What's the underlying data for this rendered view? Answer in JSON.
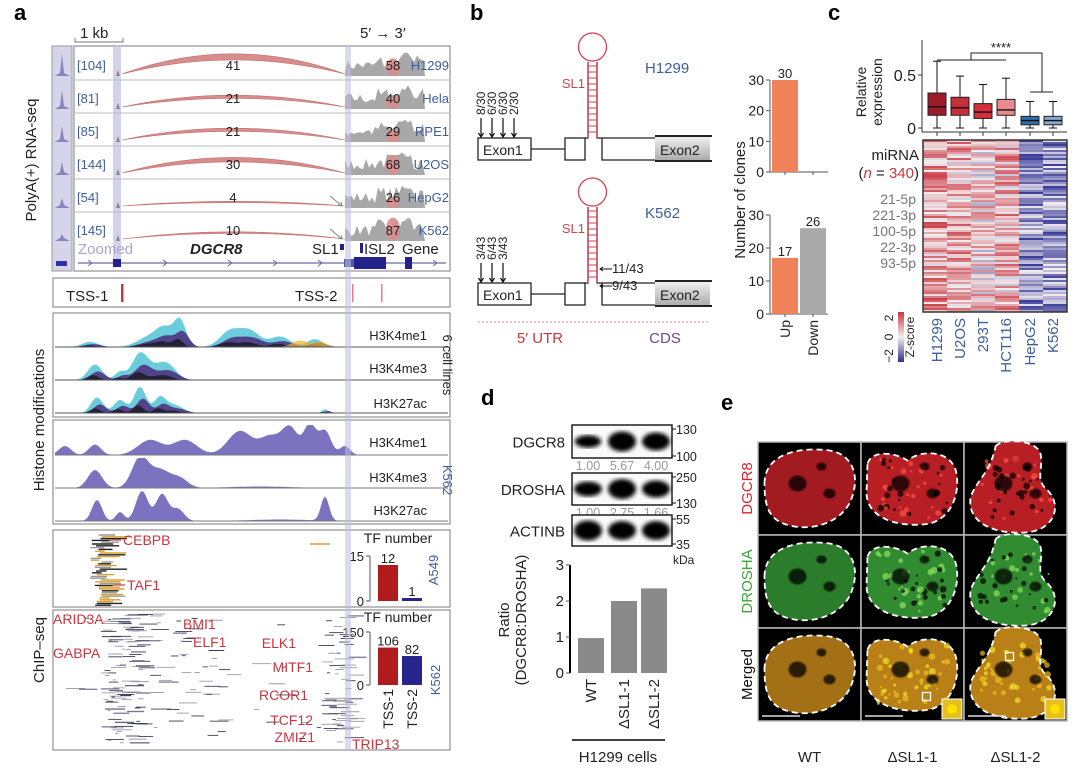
{
  "figure": {
    "panel_a": {
      "label": "a",
      "scale_label": "1 kb",
      "direction_label": "5′ → 3′",
      "rnaseq_ylabel": "PolyA(+) RNA-seq",
      "tracks": [
        {
          "range": "[104]",
          "junction_left": "41",
          "junction_right": "58",
          "cell_line": "H1299"
        },
        {
          "range": "[81]",
          "junction_left": "21",
          "junction_right": "40",
          "cell_line": "Hela"
        },
        {
          "range": "[85]",
          "junction_left": "21",
          "junction_right": "29",
          "cell_line": "RPE1"
        },
        {
          "range": "[144]",
          "junction_left": "30",
          "junction_right": "68",
          "cell_line": "U2OS"
        },
        {
          "range": "[54]",
          "junction_left": "4",
          "junction_right": "26",
          "cell_line": "HepG2"
        },
        {
          "range": "[145]",
          "junction_left": "10",
          "junction_right": "87",
          "cell_line": "K562"
        }
      ],
      "gene_track": {
        "zoomed": "Zoomed",
        "gene": "DGCR8",
        "sl1": "SL1",
        "isl2": "ISL2",
        "gene_label": "Gene"
      },
      "tss": {
        "tss1": "TSS-1",
        "tss2": "TSS-2"
      },
      "histone_ylabel": "Histone modifications",
      "histone_group1": {
        "label": "6 cell lines",
        "marks": [
          "H3K4me1",
          "H3K4me3",
          "H3K27ac"
        ]
      },
      "histone_group2": {
        "label": "K562",
        "marks": [
          "H3K4me1",
          "H3K4me3",
          "H3K27ac"
        ]
      },
      "chip_ylabel": "ChIP–seq",
      "chip_a549": {
        "cell_line": "A549",
        "tf_labels": [
          "CEBPB",
          "TAF1"
        ]
      },
      "chip_k562": {
        "cell_line": "K562",
        "tf_labels": [
          "ARID3A",
          "GABPA",
          "BMI1",
          "ELF1",
          "ELK1",
          "MITF1",
          "RCOR1",
          "TCF12",
          "ZMIZ1",
          "TRIP13"
        ]
      },
      "colors": {
        "junction_arc": "#d88c8c",
        "coverage": "#a8a8a8",
        "tf_label": "#c8363f",
        "k562_histone": "#7b72c0"
      }
    },
    "panel_b": {
      "label": "b",
      "constructs": [
        {
          "cell_line": "H1299",
          "start_fractions": [
            "8/30",
            "6/30",
            "6/30",
            "2/30"
          ],
          "stem_fractions": []
        },
        {
          "cell_line": "K562",
          "start_fractions": [
            "3/43",
            "6/43",
            "3/43"
          ],
          "stem_fractions": [
            "11/43",
            "9/43"
          ]
        }
      ],
      "stem_loop": "SL1",
      "exon1": "Exon1",
      "exon2": "Exon2",
      "utr_label": "5′ UTR",
      "cds_label": "CDS"
    },
    "panel_c": {
      "label": "c",
      "mirna_label": "miRNA",
      "n_open": "(",
      "n_symbol": "n",
      "n_eq": " = ",
      "n_value": "340",
      "n_close": ")",
      "mirna_names": [
        "21-5p",
        "221-3p",
        "100-5p",
        "22-3p",
        "93-5p"
      ],
      "zscore_label": "Z-score",
      "zscore_ticks": [
        "2",
        "0",
        "−2"
      ],
      "colors": {
        "high": "#c8363f",
        "mid": "#f4eef0",
        "low": "#3b3f9a"
      }
    },
    "panel_d": {
      "label": "d",
      "blots": [
        {
          "protein": "DGCR8",
          "quant": [
            "1.00",
            "5.67",
            "4.00"
          ],
          "mw": [
            "130",
            "100"
          ]
        },
        {
          "protein": "DROSHA",
          "quant": [
            "1.00",
            "2.75",
            "1.66"
          ],
          "mw": [
            "250",
            "130"
          ]
        },
        {
          "protein": "ACTINB",
          "quant": [],
          "mw": [
            "55",
            "35"
          ]
        }
      ],
      "mw_unit": "kDa",
      "group_label": "H1299 cells"
    },
    "panel_e": {
      "label": "e",
      "rows": [
        {
          "label": "DGCR8",
          "color": "#d8242c"
        },
        {
          "label": "DROSHA",
          "color": "#3aa53a"
        },
        {
          "label": "Merged",
          "color": "#d9961c"
        }
      ],
      "columns": [
        "WT",
        "ΔSL1-1",
        "ΔSL1-2"
      ]
    }
  },
  "chart_data": [
    {
      "type": "bar",
      "title": "TF number",
      "cell_line": "A549",
      "values": [
        12,
        1
      ],
      "yticks": [
        0,
        15
      ],
      "ylim": [
        0,
        15
      ],
      "colors": [
        "#b01c1c",
        "#25258c"
      ]
    },
    {
      "type": "bar",
      "title": "TF number",
      "cell_line": "K562",
      "categories": [
        "TSS-1",
        "TSS-2"
      ],
      "values": [
        106,
        82
      ],
      "yticks": [
        0,
        150
      ],
      "ylim": [
        0,
        150
      ],
      "colors": [
        "#b01c1c",
        "#25258c"
      ]
    },
    {
      "type": "bar",
      "cell_line": "H1299",
      "ylabel": "Number of clones",
      "categories": [
        "Up",
        "Down"
      ],
      "values": [
        30,
        0
      ],
      "value_labels": [
        "30",
        ""
      ],
      "yticks": [
        0,
        10,
        20,
        30
      ],
      "ylim": [
        0,
        30
      ],
      "colors": [
        "#f0825a",
        "#a9a9a9"
      ]
    },
    {
      "type": "bar",
      "cell_line": "K562",
      "ylabel": "Number of clones",
      "categories": [
        "Up",
        "Down"
      ],
      "values": [
        17,
        26
      ],
      "value_labels": [
        "17",
        "26"
      ],
      "yticks": [
        0,
        10,
        20,
        30
      ],
      "ylim": [
        0,
        30
      ],
      "colors": [
        "#f0825a",
        "#a9a9a9"
      ]
    },
    {
      "type": "box",
      "ylabel": [
        "Relative",
        "expression"
      ],
      "categories": [
        "H1299",
        "U2OS",
        "293T",
        "HCT116",
        "HepG2",
        "K562"
      ],
      "stats": [
        {
          "min": 0,
          "q1": 0.12,
          "median": 0.2,
          "q3": 0.33,
          "max": 0.63
        },
        {
          "min": 0,
          "q1": 0.12,
          "median": 0.19,
          "q3": 0.29,
          "max": 0.49
        },
        {
          "min": 0,
          "q1": 0.09,
          "median": 0.15,
          "q3": 0.23,
          "max": 0.41
        },
        {
          "min": 0,
          "q1": 0.12,
          "median": 0.17,
          "q3": 0.27,
          "max": 0.47
        },
        {
          "min": 0,
          "q1": 0.03,
          "median": 0.07,
          "q3": 0.11,
          "max": 0.25
        },
        {
          "min": 0,
          "q1": 0.03,
          "median": 0.07,
          "q3": 0.11,
          "max": 0.25
        }
      ],
      "yticks": [
        0,
        0.5
      ],
      "ylim": [
        0,
        0.7
      ],
      "significance": "****",
      "colors": [
        "#9e1b2a",
        "#c42f3a",
        "#d3303b",
        "#ea8a8c",
        "#2f6ea8",
        "#86a8cf"
      ]
    },
    {
      "type": "heatmap",
      "columns": [
        "H1299",
        "U2OS",
        "293T",
        "HCT116",
        "HepG2",
        "K562"
      ],
      "rows": 340,
      "zlim": [
        -2,
        2
      ]
    },
    {
      "type": "bar",
      "ylabel": [
        "Ratio",
        "(DGCR8:DROSHA)"
      ],
      "categories": [
        "WT",
        "ΔSL1-1",
        "ΔSL1-2"
      ],
      "values": [
        0.97,
        2.0,
        2.35
      ],
      "yticks": [
        0,
        1,
        2,
        3
      ],
      "ylim": [
        0,
        3
      ],
      "colors": [
        "#8a8a8a",
        "#8a8a8a",
        "#8a8a8a"
      ]
    }
  ]
}
